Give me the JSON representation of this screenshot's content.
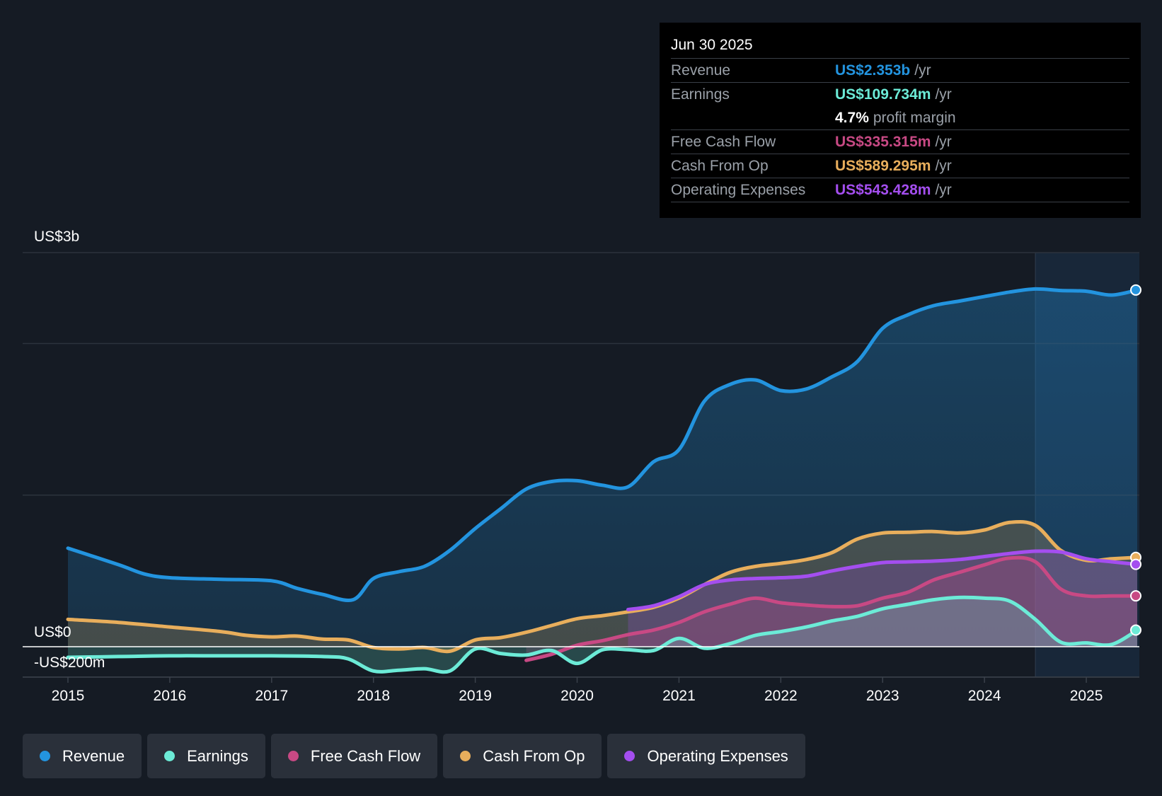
{
  "tooltip": {
    "date": "Jun 30 2025",
    "rows": [
      {
        "label": "Revenue",
        "value": "US$2.353b",
        "unit": "/yr",
        "color": "#2394df"
      },
      {
        "label": "Earnings",
        "value": "US$109.734m",
        "unit": "/yr",
        "color": "#6cebd7"
      },
      {
        "label": "",
        "value": "4.7%",
        "unit": "profit margin",
        "color": "#ffffff"
      },
      {
        "label": "Free Cash Flow",
        "value": "US$335.315m",
        "unit": "/yr",
        "color": "#c84984"
      },
      {
        "label": "Cash From Op",
        "value": "US$589.295m",
        "unit": "/yr",
        "color": "#e8ae5c"
      },
      {
        "label": "Operating Expenses",
        "value": "US$543.428m",
        "unit": "/yr",
        "color": "#a44eef"
      }
    ]
  },
  "legend": [
    {
      "label": "Revenue",
      "color": "#2394df"
    },
    {
      "label": "Earnings",
      "color": "#6cebd7"
    },
    {
      "label": "Free Cash Flow",
      "color": "#c84984"
    },
    {
      "label": "Cash From Op",
      "color": "#e8ae5c"
    },
    {
      "label": "Operating Expenses",
      "color": "#a44eef"
    }
  ],
  "chart_data": {
    "type": "area",
    "ylim": [
      -200,
      2600
    ],
    "yticks": [
      -200,
      0,
      1000,
      2000,
      2600
    ],
    "ylabels": [
      {
        "value": 2600,
        "text": "US$3b"
      },
      {
        "value": 0,
        "text": "US$0"
      },
      {
        "value": -200,
        "text": "-US$200m"
      }
    ],
    "xlim": [
      2015,
      2025.5
    ],
    "xticks": [
      2015,
      2016,
      2017,
      2018,
      2019,
      2020,
      2021,
      2022,
      2023,
      2024,
      2025
    ],
    "forecast_start": 2024.5,
    "series": [
      {
        "name": "Revenue",
        "color": "#2394df",
        "fill": true,
        "points": [
          [
            2015,
            650
          ],
          [
            2015.5,
            540
          ],
          [
            2015.75,
            480
          ],
          [
            2016,
            455
          ],
          [
            2016.5,
            445
          ],
          [
            2017,
            435
          ],
          [
            2017.25,
            385
          ],
          [
            2017.5,
            345
          ],
          [
            2017.8,
            310
          ],
          [
            2018,
            450
          ],
          [
            2018.25,
            495
          ],
          [
            2018.5,
            530
          ],
          [
            2018.75,
            635
          ],
          [
            2019,
            780
          ],
          [
            2019.25,
            910
          ],
          [
            2019.5,
            1040
          ],
          [
            2019.75,
            1090
          ],
          [
            2020,
            1095
          ],
          [
            2020.25,
            1065
          ],
          [
            2020.5,
            1055
          ],
          [
            2020.75,
            1220
          ],
          [
            2021,
            1300
          ],
          [
            2021.25,
            1620
          ],
          [
            2021.5,
            1730
          ],
          [
            2021.75,
            1760
          ],
          [
            2022,
            1690
          ],
          [
            2022.25,
            1700
          ],
          [
            2022.5,
            1780
          ],
          [
            2022.75,
            1880
          ],
          [
            2023,
            2100
          ],
          [
            2023.25,
            2190
          ],
          [
            2023.5,
            2250
          ],
          [
            2023.75,
            2280
          ],
          [
            2024,
            2310
          ],
          [
            2024.25,
            2340
          ],
          [
            2024.5,
            2360
          ],
          [
            2024.75,
            2350
          ],
          [
            2025,
            2345
          ],
          [
            2025.25,
            2320
          ],
          [
            2025.5,
            2353
          ]
        ]
      },
      {
        "name": "Cash From Op",
        "color": "#e8ae5c",
        "fill": true,
        "points": [
          [
            2015,
            180
          ],
          [
            2015.5,
            160
          ],
          [
            2016,
            130
          ],
          [
            2016.5,
            100
          ],
          [
            2016.75,
            75
          ],
          [
            2017,
            65
          ],
          [
            2017.25,
            70
          ],
          [
            2017.5,
            50
          ],
          [
            2017.75,
            45
          ],
          [
            2018,
            -5
          ],
          [
            2018.25,
            -15
          ],
          [
            2018.5,
            -5
          ],
          [
            2018.75,
            -30
          ],
          [
            2019,
            45
          ],
          [
            2019.25,
            60
          ],
          [
            2019.5,
            95
          ],
          [
            2019.75,
            140
          ],
          [
            2020,
            185
          ],
          [
            2020.25,
            205
          ],
          [
            2020.5,
            230
          ],
          [
            2020.75,
            260
          ],
          [
            2021,
            320
          ],
          [
            2021.25,
            410
          ],
          [
            2021.5,
            490
          ],
          [
            2021.75,
            530
          ],
          [
            2022,
            550
          ],
          [
            2022.25,
            575
          ],
          [
            2022.5,
            620
          ],
          [
            2022.75,
            710
          ],
          [
            2023,
            750
          ],
          [
            2023.25,
            755
          ],
          [
            2023.5,
            760
          ],
          [
            2023.75,
            750
          ],
          [
            2024,
            770
          ],
          [
            2024.25,
            820
          ],
          [
            2024.5,
            800
          ],
          [
            2024.75,
            635
          ],
          [
            2025,
            570
          ],
          [
            2025.25,
            580
          ],
          [
            2025.5,
            589.295
          ]
        ]
      },
      {
        "name": "Operating Expenses",
        "color": "#a44eef",
        "fill": true,
        "points": [
          [
            2020.5,
            245
          ],
          [
            2020.75,
            270
          ],
          [
            2021,
            330
          ],
          [
            2021.25,
            410
          ],
          [
            2021.5,
            440
          ],
          [
            2021.75,
            450
          ],
          [
            2022,
            455
          ],
          [
            2022.25,
            465
          ],
          [
            2022.5,
            500
          ],
          [
            2022.75,
            530
          ],
          [
            2023,
            555
          ],
          [
            2023.25,
            560
          ],
          [
            2023.5,
            565
          ],
          [
            2023.75,
            575
          ],
          [
            2024,
            595
          ],
          [
            2024.25,
            615
          ],
          [
            2024.5,
            630
          ],
          [
            2024.75,
            625
          ],
          [
            2025,
            580
          ],
          [
            2025.25,
            560
          ],
          [
            2025.5,
            543.428
          ]
        ]
      },
      {
        "name": "Free Cash Flow",
        "color": "#c84984",
        "fill": true,
        "points": [
          [
            2019.5,
            -90
          ],
          [
            2019.75,
            -50
          ],
          [
            2020,
            10
          ],
          [
            2020.25,
            40
          ],
          [
            2020.5,
            80
          ],
          [
            2020.75,
            110
          ],
          [
            2021,
            160
          ],
          [
            2021.25,
            230
          ],
          [
            2021.5,
            280
          ],
          [
            2021.75,
            320
          ],
          [
            2022,
            290
          ],
          [
            2022.25,
            275
          ],
          [
            2022.5,
            265
          ],
          [
            2022.75,
            270
          ],
          [
            2023,
            320
          ],
          [
            2023.25,
            360
          ],
          [
            2023.5,
            440
          ],
          [
            2023.75,
            490
          ],
          [
            2024,
            540
          ],
          [
            2024.25,
            585
          ],
          [
            2024.5,
            560
          ],
          [
            2024.75,
            380
          ],
          [
            2025,
            335
          ],
          [
            2025.25,
            335
          ],
          [
            2025.5,
            335.315
          ]
        ]
      },
      {
        "name": "Earnings",
        "color": "#6cebd7",
        "fill": true,
        "points": [
          [
            2015,
            -70
          ],
          [
            2015.5,
            -65
          ],
          [
            2016,
            -60
          ],
          [
            2016.5,
            -60
          ],
          [
            2017,
            -60
          ],
          [
            2017.5,
            -65
          ],
          [
            2017.75,
            -80
          ],
          [
            2018,
            -160
          ],
          [
            2018.25,
            -155
          ],
          [
            2018.5,
            -145
          ],
          [
            2018.75,
            -160
          ],
          [
            2019,
            -15
          ],
          [
            2019.25,
            -45
          ],
          [
            2019.5,
            -55
          ],
          [
            2019.75,
            -25
          ],
          [
            2020,
            -110
          ],
          [
            2020.25,
            -20
          ],
          [
            2020.5,
            -20
          ],
          [
            2020.75,
            -25
          ],
          [
            2021,
            55
          ],
          [
            2021.25,
            -10
          ],
          [
            2021.5,
            20
          ],
          [
            2021.75,
            75
          ],
          [
            2022,
            100
          ],
          [
            2022.25,
            130
          ],
          [
            2022.5,
            170
          ],
          [
            2022.75,
            200
          ],
          [
            2023,
            250
          ],
          [
            2023.25,
            280
          ],
          [
            2023.5,
            310
          ],
          [
            2023.75,
            325
          ],
          [
            2024,
            320
          ],
          [
            2024.25,
            300
          ],
          [
            2024.5,
            180
          ],
          [
            2024.75,
            30
          ],
          [
            2025,
            25
          ],
          [
            2025.25,
            15
          ],
          [
            2025.5,
            109.734
          ]
        ]
      }
    ]
  }
}
